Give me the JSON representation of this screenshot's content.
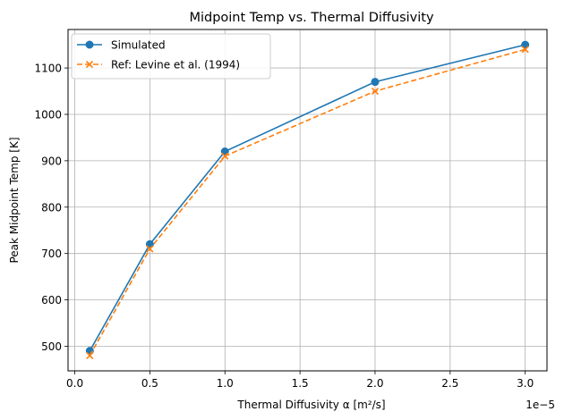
{
  "chart_data": {
    "type": "line",
    "title": "Midpoint Temp vs. Thermal Diffusivity",
    "xlabel": "Thermal Diffusivity α [m²/s]",
    "ylabel": "Peak Midpoint Temp [K]",
    "x_offset_label": "1e−5",
    "xlim": [
      -0.045,
      3.145
    ],
    "ylim": [
      447,
      1183
    ],
    "x_ticks": [
      0.0,
      0.5,
      1.0,
      1.5,
      2.0,
      2.5,
      3.0
    ],
    "x_tick_labels": [
      "0.0",
      "0.5",
      "1.0",
      "1.5",
      "2.0",
      "2.5",
      "3.0"
    ],
    "y_ticks": [
      500,
      600,
      700,
      800,
      900,
      1000,
      1100
    ],
    "y_tick_labels": [
      "500",
      "600",
      "700",
      "800",
      "900",
      "1000",
      "1100"
    ],
    "grid": true,
    "legend_position": "upper-left",
    "series": [
      {
        "name": "Simulated",
        "color": "#1f77b4",
        "line_style": "solid",
        "marker": "circle",
        "x": [
          0.1,
          0.5,
          1.0,
          2.0,
          3.0
        ],
        "y": [
          490,
          720,
          920,
          1070,
          1150
        ]
      },
      {
        "name": "Ref: Levine et al. (1994)",
        "color": "#ff7f0e",
        "line_style": "dashed",
        "marker": "x",
        "x": [
          0.1,
          0.5,
          1.0,
          2.0,
          3.0
        ],
        "y": [
          480,
          710,
          910,
          1050,
          1140
        ]
      }
    ]
  }
}
